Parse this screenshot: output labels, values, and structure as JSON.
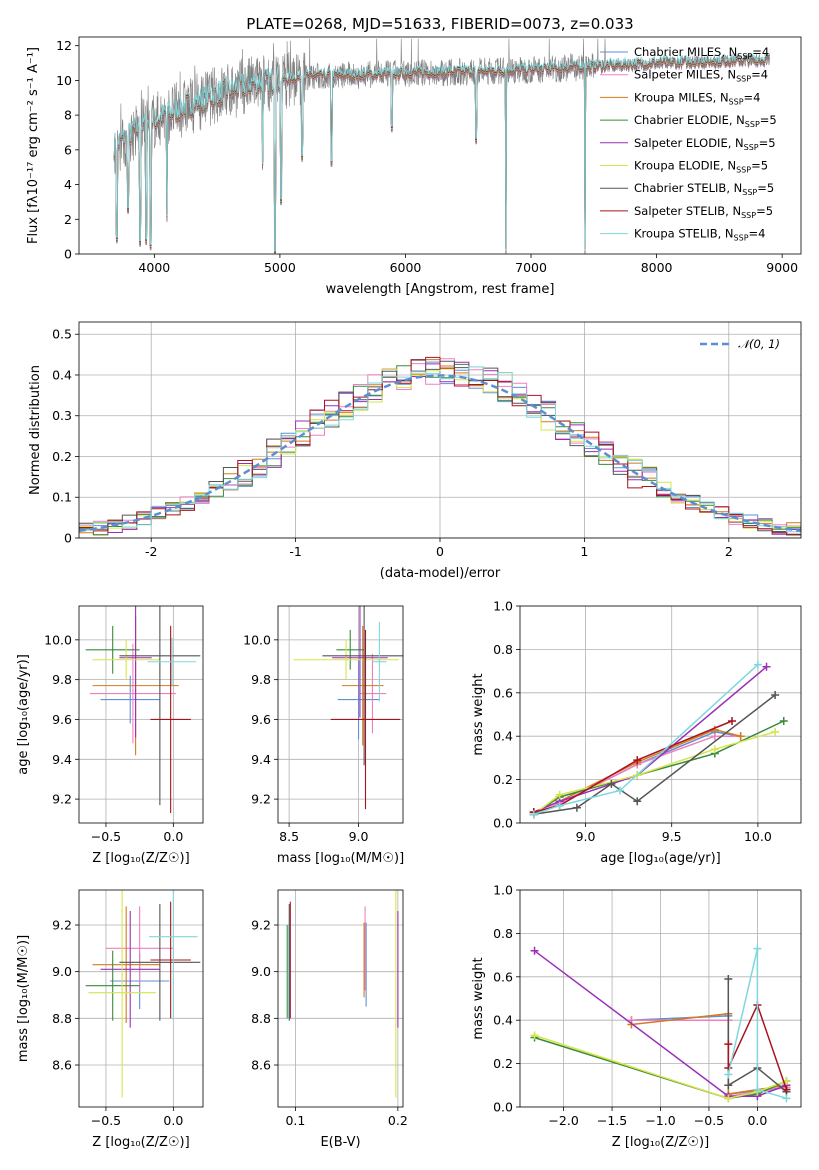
{
  "colors": {
    "Chabrier MILES": "#5f8fd6",
    "Salpeter MILES": "#f07fc2",
    "Kroupa MILES": "#d47a1f",
    "Chabrier ELODIE": "#3a8a3a",
    "Salpeter ELODIE": "#9c2fb8",
    "Kroupa ELODIE": "#d6e64a",
    "Chabrier STELIB": "#555555",
    "Salpeter STELIB": "#a8141e",
    "Kroupa STELIB": "#7dd8dc",
    "data": "#7f7f7f",
    "grid": "#b0b0b0"
  },
  "chart_data": [
    {
      "id": "spectrum",
      "type": "line",
      "title": "PLATE=0268, MJD=51633, FIBERID=0073, z=0.033",
      "xlabel": "wavelength [Angstrom, rest frame]",
      "ylabel": "Flux [fλ10⁻¹⁷ erg cm⁻² s⁻¹ A⁻¹]",
      "xlim": [
        3400,
        9150
      ],
      "ylim": [
        0,
        12.5
      ],
      "xticks": [
        4000,
        5000,
        6000,
        7000,
        8000,
        9000
      ],
      "yticks": [
        0,
        2,
        4,
        6,
        8,
        10,
        12
      ],
      "grid": false,
      "legend_position": "top-right",
      "legend": [
        {
          "name": "Chabrier MILES",
          "nssp": "4"
        },
        {
          "name": "Salpeter MILES",
          "nssp": "4"
        },
        {
          "name": "Kroupa MILES",
          "nssp": "4"
        },
        {
          "name": "Chabrier ELODIE",
          "nssp": "5"
        },
        {
          "name": "Salpeter ELODIE",
          "nssp": "5"
        },
        {
          "name": "Kroupa ELODIE",
          "nssp": "5"
        },
        {
          "name": "Chabrier STELIB",
          "nssp": "5"
        },
        {
          "name": "Salpeter STELIB",
          "nssp": "5"
        },
        {
          "name": "Kroupa STELIB",
          "nssp": "4"
        }
      ],
      "legend_suffix": "N",
      "legend_sub": "SSP",
      "continuum_anchors": [
        [
          3680,
          6.2
        ],
        [
          3800,
          6.8
        ],
        [
          3950,
          7.5
        ],
        [
          4100,
          8.0
        ],
        [
          4300,
          8.6
        ],
        [
          4500,
          9.2
        ],
        [
          4800,
          9.8
        ],
        [
          5200,
          10.2
        ],
        [
          5600,
          10.3
        ],
        [
          6000,
          10.4
        ],
        [
          6500,
          10.5
        ],
        [
          7000,
          10.6
        ],
        [
          7500,
          10.8
        ],
        [
          8000,
          11.0
        ],
        [
          8500,
          11.1
        ],
        [
          8900,
          11.2
        ]
      ],
      "dips": [
        [
          3700,
          0.8
        ],
        [
          3790,
          2.5
        ],
        [
          3885,
          0.6
        ],
        [
          3935,
          0.7
        ],
        [
          3970,
          0.4
        ],
        [
          4100,
          2.0
        ],
        [
          4862,
          5.0
        ],
        [
          4960,
          0.0
        ],
        [
          5010,
          3.0
        ],
        [
          5175,
          5.5
        ],
        [
          5410,
          5.2
        ],
        [
          5890,
          7.2
        ],
        [
          6563,
          6.5
        ],
        [
          6800,
          0.0
        ],
        [
          7430,
          0.0
        ]
      ]
    },
    {
      "id": "residuals",
      "type": "histogram",
      "xlabel": "(data-model)/error",
      "ylabel": "Normed distribution",
      "xlim": [
        -2.5,
        2.5
      ],
      "ylim": [
        0,
        0.53
      ],
      "xticks": [
        -2,
        -1,
        0,
        1,
        2
      ],
      "yticks": [
        0,
        0.1,
        0.2,
        0.3,
        0.4,
        0.5
      ],
      "grid": true,
      "legend_position": "top-right",
      "gaussian_label": "𝒩(0, 1)",
      "gaussian": {
        "mu": 0,
        "sigma": 1
      },
      "bin_width": 0.1
    },
    {
      "id": "age-vs-Z",
      "type": "scatter",
      "xlabel": "Z [log₁₀(Z/Z☉)]",
      "ylabel": "age  [log₁₀(age/yr)]",
      "xlim": [
        -0.7,
        0.22
      ],
      "ylim": [
        9.08,
        10.17
      ],
      "xticks": [
        -0.5,
        0.0
      ],
      "xtick_labels": [
        "−0.5",
        "0.0"
      ],
      "yticks": [
        9.2,
        9.4,
        9.6,
        9.8,
        10.0
      ],
      "ytick_labels": [
        "9.2",
        "9.4",
        "9.6",
        "9.8",
        "10.0"
      ],
      "grid": true,
      "points": [
        {
          "series": "Chabrier MILES",
          "x": -0.32,
          "xerr": 0.22,
          "y": 9.7,
          "yerr": 0.12
        },
        {
          "series": "Salpeter MILES",
          "x": -0.3,
          "xerr": 0.32,
          "y": 9.73,
          "yerr": 0.25
        },
        {
          "series": "Kroupa MILES",
          "x": -0.28,
          "xerr": 0.32,
          "y": 9.77,
          "yerr": 0.35
        },
        {
          "series": "Chabrier ELODIE",
          "x": -0.45,
          "xerr": 0.2,
          "y": 9.95,
          "yerr": 0.12
        },
        {
          "series": "Salpeter ELODIE",
          "x": -0.28,
          "xerr": 0.12,
          "y": 9.91,
          "yerr": 0.4
        },
        {
          "series": "Kroupa ELODIE",
          "x": -0.35,
          "xerr": 0.25,
          "y": 9.9,
          "yerr": 0.1
        },
        {
          "series": "Chabrier STELIB",
          "x": -0.1,
          "xerr": 0.3,
          "y": 9.92,
          "yerr": 0.75
        },
        {
          "series": "Salpeter STELIB",
          "x": -0.02,
          "xerr": 0.15,
          "y": 9.6,
          "yerr": 0.47
        },
        {
          "series": "Kroupa STELIB",
          "x": -0.01,
          "xerr": 0.18,
          "y": 9.89,
          "yerr": 0.12
        }
      ]
    },
    {
      "id": "age-vs-mass",
      "type": "scatter",
      "xlabel": "mass [log₁₀(M/M☉)]",
      "ylabel": "",
      "xlim": [
        8.42,
        9.32
      ],
      "ylim": [
        9.08,
        10.17
      ],
      "xticks": [
        8.5,
        9.0
      ],
      "xtick_labels": [
        "8.5",
        "9.0"
      ],
      "yticks": [
        9.2,
        9.4,
        9.6,
        9.8,
        10.0
      ],
      "ytick_labels": [
        "9.2",
        "9.4",
        "9.6",
        "9.8",
        "10.0"
      ],
      "grid": true,
      "points": [
        {
          "series": "Chabrier MILES",
          "x": 9.0,
          "xerr": 0.15,
          "y": 9.7,
          "yerr": 0.2
        },
        {
          "series": "Salpeter MILES",
          "x": 9.1,
          "xerr": 0.1,
          "y": 9.73,
          "yerr": 0.2
        },
        {
          "series": "Kroupa MILES",
          "x": 9.03,
          "xerr": 0.15,
          "y": 9.77,
          "yerr": 0.3
        },
        {
          "series": "Chabrier ELODIE",
          "x": 8.94,
          "xerr": 0.1,
          "y": 9.95,
          "yerr": 0.1
        },
        {
          "series": "Salpeter ELODIE",
          "x": 9.01,
          "xerr": 0.2,
          "y": 9.91,
          "yerr": 0.3
        },
        {
          "series": "Kroupa ELODIE",
          "x": 8.91,
          "xerr": 0.38,
          "y": 9.9,
          "yerr": 0.1
        },
        {
          "series": "Chabrier STELIB",
          "x": 9.04,
          "xerr": 0.3,
          "y": 9.92,
          "yerr": 0.55
        },
        {
          "series": "Salpeter STELIB",
          "x": 9.05,
          "xerr": 0.25,
          "y": 9.6,
          "yerr": 0.45
        },
        {
          "series": "Kroupa STELIB",
          "x": 9.15,
          "xerr": 0.05,
          "y": 9.89,
          "yerr": 0.2
        }
      ]
    },
    {
      "id": "weight-vs-age",
      "type": "line",
      "xlabel": "age  [log₁₀(age/yr)]",
      "ylabel": "mass weight",
      "xlim": [
        8.62,
        10.25
      ],
      "ylim": [
        0,
        1.0
      ],
      "xticks": [
        9.0,
        9.5,
        10.0
      ],
      "xtick_labels": [
        "9.0",
        "9.5",
        "10.0"
      ],
      "yticks": [
        0,
        0.2,
        0.4,
        0.6,
        0.8,
        1.0
      ],
      "ytick_labels": [
        "0.0",
        "0.2",
        "0.4",
        "0.6",
        "0.8",
        "1.0"
      ],
      "grid": true,
      "series": [
        {
          "name": "Chabrier MILES",
          "x": [
            8.7,
            8.85,
            9.3,
            9.75,
            9.9
          ],
          "y": [
            0.04,
            0.09,
            0.27,
            0.42,
            0.4
          ]
        },
        {
          "name": "Salpeter MILES",
          "x": [
            8.7,
            8.85,
            9.3,
            9.75,
            9.9
          ],
          "y": [
            0.04,
            0.09,
            0.27,
            0.4,
            0.4
          ]
        },
        {
          "name": "Kroupa MILES",
          "x": [
            8.7,
            8.85,
            9.3,
            9.75,
            9.9
          ],
          "y": [
            0.05,
            0.1,
            0.28,
            0.43,
            0.4
          ]
        },
        {
          "name": "Chabrier ELODIE",
          "x": [
            8.7,
            8.85,
            9.3,
            9.75,
            10.15
          ],
          "y": [
            0.04,
            0.12,
            0.22,
            0.32,
            0.47
          ]
        },
        {
          "name": "Salpeter ELODIE",
          "x": [
            8.7,
            8.85,
            9.3,
            10.05
          ],
          "y": [
            0.05,
            0.1,
            0.22,
            0.72
          ]
        },
        {
          "name": "Kroupa ELODIE",
          "x": [
            8.7,
            8.85,
            9.3,
            9.75,
            10.1
          ],
          "y": [
            0.04,
            0.13,
            0.22,
            0.34,
            0.42
          ]
        },
        {
          "name": "Chabrier STELIB",
          "x": [
            8.7,
            8.95,
            9.15,
            9.3,
            10.1
          ],
          "y": [
            0.04,
            0.07,
            0.18,
            0.1,
            0.59
          ]
        },
        {
          "name": "Salpeter STELIB",
          "x": [
            8.7,
            8.85,
            9.3,
            9.85
          ],
          "y": [
            0.05,
            0.08,
            0.29,
            0.47
          ]
        },
        {
          "name": "Kroupa STELIB",
          "x": [
            8.7,
            8.85,
            9.2,
            10.0
          ],
          "y": [
            0.04,
            0.08,
            0.15,
            0.73
          ]
        }
      ]
    },
    {
      "id": "mass-vs-Z",
      "type": "scatter",
      "xlabel": "Z [log₁₀(Z/Z☉)]",
      "ylabel": "mass [log₁₀(M/M☉)]",
      "xlim": [
        -0.7,
        0.22
      ],
      "ylim": [
        8.42,
        9.35
      ],
      "xticks": [
        -0.5,
        0.0
      ],
      "xtick_labels": [
        "−0.5",
        "0.0"
      ],
      "yticks": [
        8.6,
        8.8,
        9.0,
        9.2
      ],
      "ytick_labels": [
        "8.6",
        "8.8",
        "9.0",
        "9.2"
      ],
      "grid": true,
      "points": [
        {
          "series": "Chabrier MILES",
          "x": -0.25,
          "xerr": 0.22,
          "y": 8.96,
          "yerr": 0.12
        },
        {
          "series": "Salpeter MILES",
          "x": -0.25,
          "xerr": 0.25,
          "y": 9.1,
          "yerr": 0.18
        },
        {
          "series": "Kroupa MILES",
          "x": -0.35,
          "xerr": 0.25,
          "y": 9.03,
          "yerr": 0.25
        },
        {
          "series": "Chabrier ELODIE",
          "x": -0.45,
          "xerr": 0.2,
          "y": 8.94,
          "yerr": 0.15
        },
        {
          "series": "Salpeter ELODIE",
          "x": -0.32,
          "xerr": 0.22,
          "y": 9.01,
          "yerr": 0.25
        },
        {
          "series": "Kroupa ELODIE",
          "x": -0.38,
          "xerr": 0.25,
          "y": 8.91,
          "yerr": 0.45
        },
        {
          "series": "Chabrier STELIB",
          "x": -0.1,
          "xerr": 0.3,
          "y": 9.04,
          "yerr": 0.25
        },
        {
          "series": "Salpeter STELIB",
          "x": -0.02,
          "xerr": 0.15,
          "y": 9.05,
          "yerr": 0.25
        },
        {
          "series": "Kroupa STELIB",
          "x": 0.0,
          "xerr": 0.18,
          "y": 9.15,
          "yerr": 0.35
        }
      ]
    },
    {
      "id": "mass-vs-EBV",
      "type": "scatter",
      "xlabel": "E(B-V)",
      "ylabel": "",
      "xlim": [
        0.083,
        0.205
      ],
      "ylim": [
        8.42,
        9.35
      ],
      "xticks": [
        0.1,
        0.2
      ],
      "xtick_labels": [
        "0.1",
        "0.2"
      ],
      "yticks": [
        8.6,
        8.8,
        9.0,
        9.2
      ],
      "ytick_labels": [
        "8.6",
        "8.8",
        "9.0",
        "9.2"
      ],
      "grid": true,
      "points": [
        {
          "series": "Chabrier MILES",
          "x": 0.169,
          "xerr": 0.0,
          "y": 9.03,
          "yerr": 0.18
        },
        {
          "series": "Salpeter MILES",
          "x": 0.168,
          "xerr": 0.0,
          "y": 9.1,
          "yerr": 0.18
        },
        {
          "series": "Kroupa MILES",
          "x": 0.167,
          "xerr": 0.0,
          "y": 9.05,
          "yerr": 0.16
        },
        {
          "series": "Chabrier ELODIE",
          "x": 0.092,
          "xerr": 0.0,
          "y": 9.0,
          "yerr": 0.2
        },
        {
          "series": "Salpeter ELODIE",
          "x": 0.2,
          "xerr": 0.0,
          "y": 9.01,
          "yerr": 0.25
        },
        {
          "series": "Kroupa ELODIE",
          "x": 0.198,
          "xerr": 0.0,
          "y": 8.91,
          "yerr": 0.45
        },
        {
          "series": "Chabrier STELIB",
          "x": 0.094,
          "xerr": 0.0,
          "y": 9.04,
          "yerr": 0.25
        },
        {
          "series": "Salpeter STELIB",
          "x": 0.095,
          "xerr": 0.0,
          "y": 9.05,
          "yerr": 0.25
        },
        {
          "series": "Kroupa STELIB",
          "x": 0.093,
          "xerr": 0.0,
          "y": 9.0,
          "yerr": 0.2
        }
      ]
    },
    {
      "id": "weight-vs-Z",
      "type": "line",
      "xlabel": "Z [log₁₀(Z/Z☉)]",
      "ylabel": "mass weight",
      "xlim": [
        -2.45,
        0.45
      ],
      "ylim": [
        0,
        1.0
      ],
      "xticks": [
        -2.0,
        -1.5,
        -1.0,
        -0.5,
        0.0
      ],
      "xtick_labels": [
        "−2.0",
        "−1.5",
        "−1.0",
        "−0.5",
        "0.0"
      ],
      "yticks": [
        0,
        0.2,
        0.4,
        0.6,
        0.8,
        1.0
      ],
      "ytick_labels": [
        "0.0",
        "0.2",
        "0.4",
        "0.6",
        "0.8",
        "1.0"
      ],
      "grid": true,
      "series": [
        {
          "name": "Chabrier MILES",
          "x": [
            -1.3,
            -0.3,
            -0.3,
            0.3
          ],
          "y": [
            0.4,
            0.42,
            0.06,
            0.09
          ]
        },
        {
          "name": "Salpeter MILES",
          "x": [
            -1.3,
            -0.3,
            -0.3,
            0.3
          ],
          "y": [
            0.4,
            0.4,
            0.05,
            0.09
          ]
        },
        {
          "name": "Kroupa MILES",
          "x": [
            -1.3,
            -0.3,
            -0.3,
            0.3
          ],
          "y": [
            0.38,
            0.43,
            0.06,
            0.1
          ]
        },
        {
          "name": "Chabrier ELODIE",
          "x": [
            -2.3,
            -0.3,
            0.0,
            0.3
          ],
          "y": [
            0.32,
            0.04,
            0.06,
            0.12
          ]
        },
        {
          "name": "Salpeter ELODIE",
          "x": [
            -2.3,
            -0.3,
            0.0,
            0.3
          ],
          "y": [
            0.72,
            0.05,
            0.05,
            0.1
          ]
        },
        {
          "name": "Kroupa ELODIE",
          "x": [
            -2.3,
            -0.3,
            0.0,
            0.3
          ],
          "y": [
            0.33,
            0.04,
            0.07,
            0.12
          ]
        },
        {
          "name": "Chabrier STELIB",
          "x": [
            -0.3,
            -0.3,
            0.0,
            0.3
          ],
          "y": [
            0.59,
            0.1,
            0.18,
            0.07
          ]
        },
        {
          "name": "Salpeter STELIB",
          "x": [
            -0.3,
            -0.3,
            0.0,
            0.3
          ],
          "y": [
            0.29,
            0.18,
            0.47,
            0.08
          ]
        },
        {
          "name": "Kroupa STELIB",
          "x": [
            -0.3,
            0.0,
            0.0,
            0.3
          ],
          "y": [
            0.15,
            0.73,
            0.08,
            0.04
          ]
        }
      ]
    }
  ]
}
